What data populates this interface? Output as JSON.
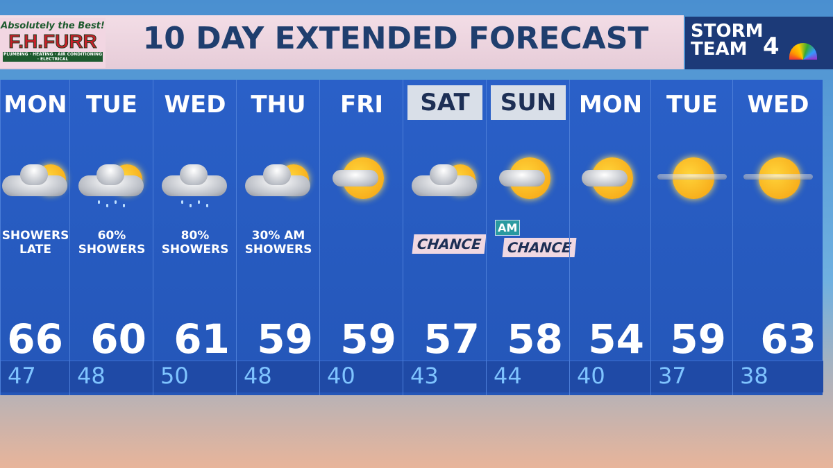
{
  "sponsor": {
    "tagline": "Absolutely the Best!",
    "name": "F.H.FURR",
    "services": "PLUMBING · HEATING · AIR CONDITIONING · ELECTRICAL"
  },
  "title": "10 DAY EXTENDED FORECAST",
  "brand": {
    "line1": "STORM",
    "line2": "TEAM",
    "number": "4"
  },
  "colors": {
    "panel": "#2a60c8",
    "sun": "#f5a010",
    "highlight": "#d9dfe8"
  },
  "days": [
    {
      "day": "MON",
      "icon": "partly-cloudy-icon",
      "desc": "SHOWERS\nLATE",
      "hi": "66",
      "lo": "47"
    },
    {
      "day": "TUE",
      "icon": "showers-icon",
      "desc": "60%\nSHOWERS",
      "hi": "60",
      "lo": "48"
    },
    {
      "day": "WED",
      "icon": "rain-icon",
      "desc": "80%\nSHOWERS",
      "hi": "61",
      "lo": "50"
    },
    {
      "day": "THU",
      "icon": "partly-cloudy-icon",
      "desc": "30% AM\nSHOWERS",
      "hi": "59",
      "lo": "48"
    },
    {
      "day": "FRI",
      "icon": "mostly-sunny-icon",
      "desc": "",
      "hi": "59",
      "lo": "40"
    },
    {
      "day": "SAT",
      "icon": "partly-cloudy-icon",
      "tag": "CHANCE",
      "hi": "57",
      "lo": "43",
      "highlight": true
    },
    {
      "day": "SUN",
      "icon": "mostly-sunny-icon",
      "am": "AM",
      "tag": "CHANCE",
      "hi": "58",
      "lo": "44",
      "highlight": true
    },
    {
      "day": "MON",
      "icon": "mostly-sunny-icon",
      "desc": "",
      "hi": "54",
      "lo": "40"
    },
    {
      "day": "TUE",
      "icon": "sunny-windy-icon",
      "desc": "",
      "hi": "59",
      "lo": "37"
    },
    {
      "day": "WED",
      "icon": "sunny-windy-icon",
      "desc": "",
      "hi": "63",
      "lo": "38"
    }
  ]
}
